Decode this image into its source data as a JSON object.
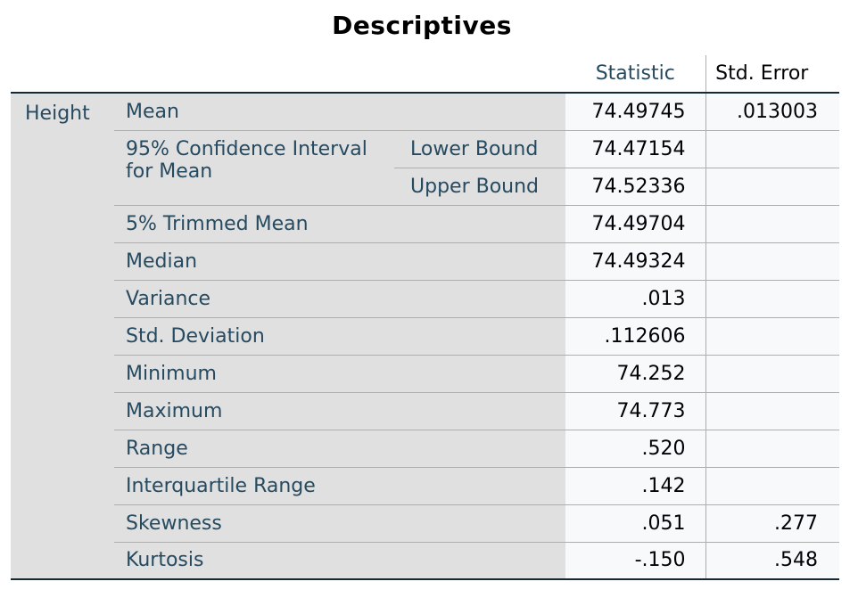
{
  "title": "Descriptives",
  "headers": {
    "statistic": "Statistic",
    "std_error": "Std. Error"
  },
  "variable": "Height",
  "rows": {
    "mean": {
      "label": "Mean",
      "statistic": "74.49745",
      "std_error": ".013003"
    },
    "ci": {
      "label": "95% Confidence Interval for Mean",
      "lower": {
        "label": "Lower Bound",
        "statistic": "74.47154"
      },
      "upper": {
        "label": "Upper Bound",
        "statistic": "74.52336"
      }
    },
    "trimmed_mean": {
      "label": "5% Trimmed Mean",
      "statistic": "74.49704"
    },
    "median": {
      "label": "Median",
      "statistic": "74.49324"
    },
    "variance": {
      "label": "Variance",
      "statistic": ".013"
    },
    "std_deviation": {
      "label": "Std. Deviation",
      "statistic": ".112606"
    },
    "minimum": {
      "label": "Minimum",
      "statistic": "74.252"
    },
    "maximum": {
      "label": "Maximum",
      "statistic": "74.773"
    },
    "range": {
      "label": "Range",
      "statistic": ".520"
    },
    "iqr": {
      "label": "Interquartile Range",
      "statistic": ".142"
    },
    "skewness": {
      "label": "Skewness",
      "statistic": ".051",
      "std_error": ".277"
    },
    "kurtosis": {
      "label": "Kurtosis",
      "statistic": "-.150",
      "std_error": ".548"
    }
  }
}
